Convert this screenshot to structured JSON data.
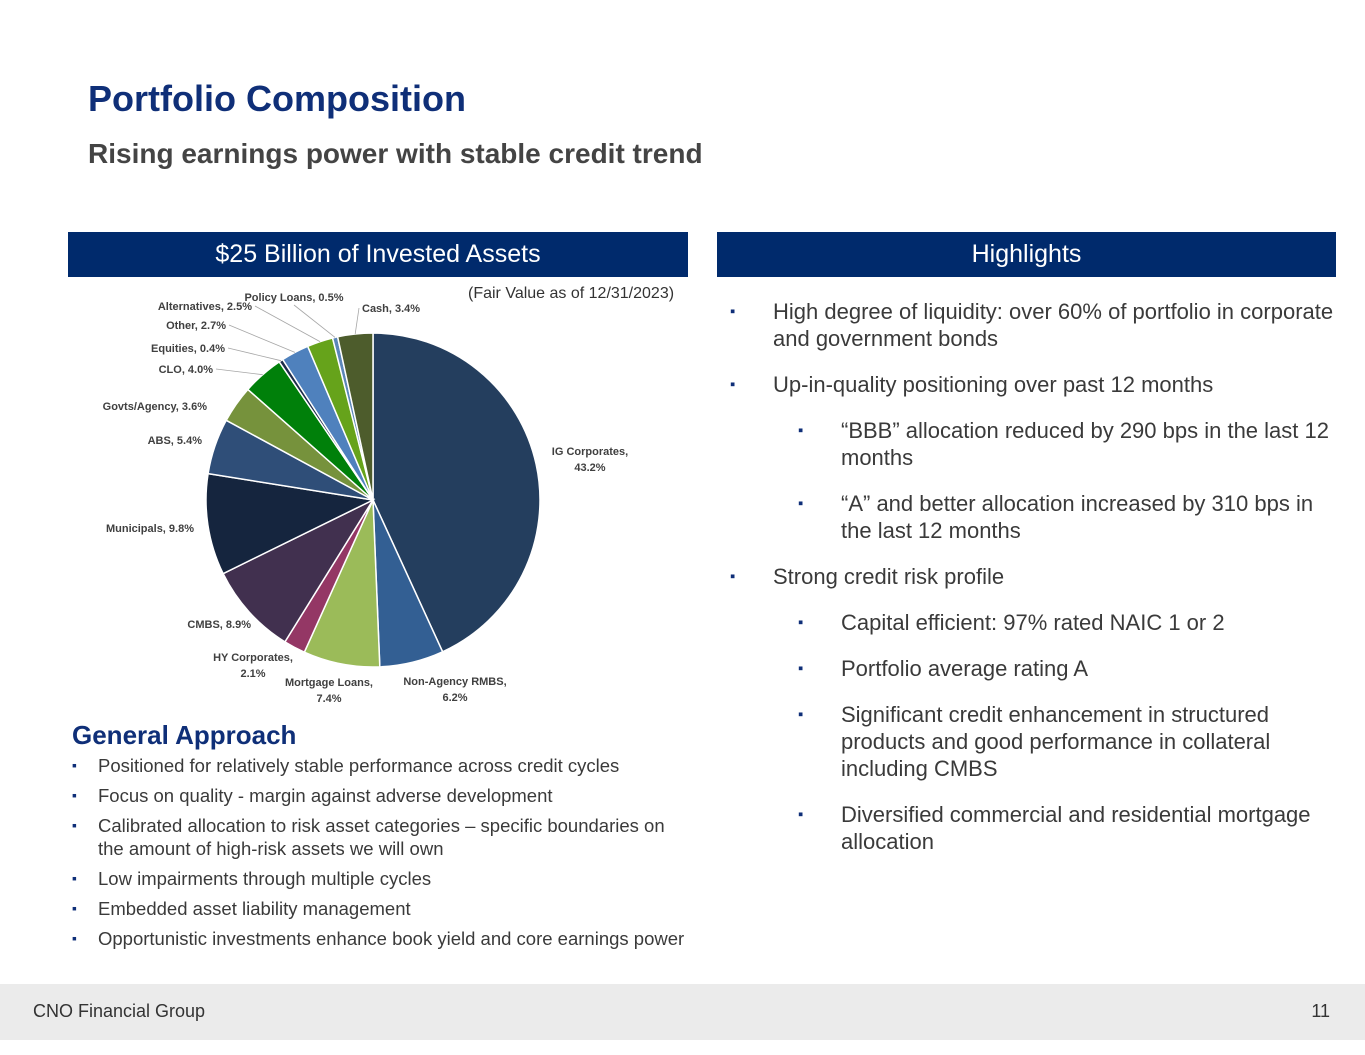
{
  "header": {
    "title": "Portfolio Composition",
    "subtitle": "Rising earnings power with stable credit trend"
  },
  "left_panel": {
    "banner": "$25 Billion of Invested Assets",
    "as_of": "(Fair Value as of 12/31/2023)"
  },
  "chart_data": {
    "type": "pie",
    "title": "$25 Billion of Invested Assets",
    "unit": "%",
    "slices": [
      {
        "label": "IG Corporates,",
        "label2": "43.2%",
        "value": 43.2,
        "color": "#243e5e"
      },
      {
        "label": "Non-Agency RMBS,",
        "label2": "6.2%",
        "value": 6.2,
        "color": "#335f93"
      },
      {
        "label": "Mortgage Loans,",
        "label2": "7.4%",
        "value": 7.4,
        "color": "#9bbb59"
      },
      {
        "label": "HY Corporates,",
        "label2": "2.1%",
        "value": 2.1,
        "color": "#943765"
      },
      {
        "label": "CMBS, 8.9%",
        "label2": "",
        "value": 8.9,
        "color": "#41304f"
      },
      {
        "label": "Municipals, 9.8%",
        "label2": "",
        "value": 9.8,
        "color": "#15253e"
      },
      {
        "label": "ABS, 5.4%",
        "label2": "",
        "value": 5.4,
        "color": "#2f4e78"
      },
      {
        "label": "Govts/Agency, 3.6%",
        "label2": "",
        "value": 3.6,
        "color": "#76923c"
      },
      {
        "label": "CLO, 4.0%",
        "label2": "",
        "value": 4.0,
        "color": "#00800a"
      },
      {
        "label": "Equities, 0.4%",
        "label2": "",
        "value": 0.4,
        "color": "#1c2c4a"
      },
      {
        "label": "Other, 2.7%",
        "label2": "",
        "value": 2.7,
        "color": "#4f81bd"
      },
      {
        "label": "Alternatives, 2.5%",
        "label2": "",
        "value": 2.5,
        "color": "#66a31b"
      },
      {
        "label": "Policy Loans, 0.5%",
        "label2": "",
        "value": 0.5,
        "color": "#5b86b8"
      },
      {
        "label": "Cash, 3.4%",
        "label2": "",
        "value": 3.4,
        "color": "#4d5c2c"
      }
    ]
  },
  "approach": {
    "title": "General Approach",
    "items": [
      "Positioned for relatively stable performance across credit cycles",
      "Focus on quality - margin against adverse development",
      "Calibrated allocation to risk asset categories – specific boundaries on the amount of high-risk assets we will own",
      "Low impairments through multiple cycles",
      "Embedded asset liability management",
      "Opportunistic investments enhance book yield and core earnings power"
    ]
  },
  "highlights": {
    "banner": "Highlights",
    "items": [
      {
        "level": 1,
        "text": "High degree of liquidity: over 60% of portfolio in corporate and government bonds"
      },
      {
        "level": 1,
        "text": "Up-in-quality positioning over past 12 months"
      },
      {
        "level": 2,
        "text": "“BBB” allocation reduced by 290 bps in the last 12 months"
      },
      {
        "level": 2,
        "text": "“A” and better allocation increased by 310 bps in the last 12 months"
      },
      {
        "level": 1,
        "text": "Strong credit risk profile"
      },
      {
        "level": 2,
        "text": "Capital efficient: 97% rated NAIC 1 or 2"
      },
      {
        "level": 2,
        "text": "Portfolio average rating A"
      },
      {
        "level": 2,
        "text": "Significant credit enhancement in structured products and good performance in collateral including CMBS"
      },
      {
        "level": 2,
        "text": "Diversified commercial and residential mortgage allocation"
      }
    ]
  },
  "footer": {
    "company": "CNO Financial Group",
    "page": "11"
  }
}
